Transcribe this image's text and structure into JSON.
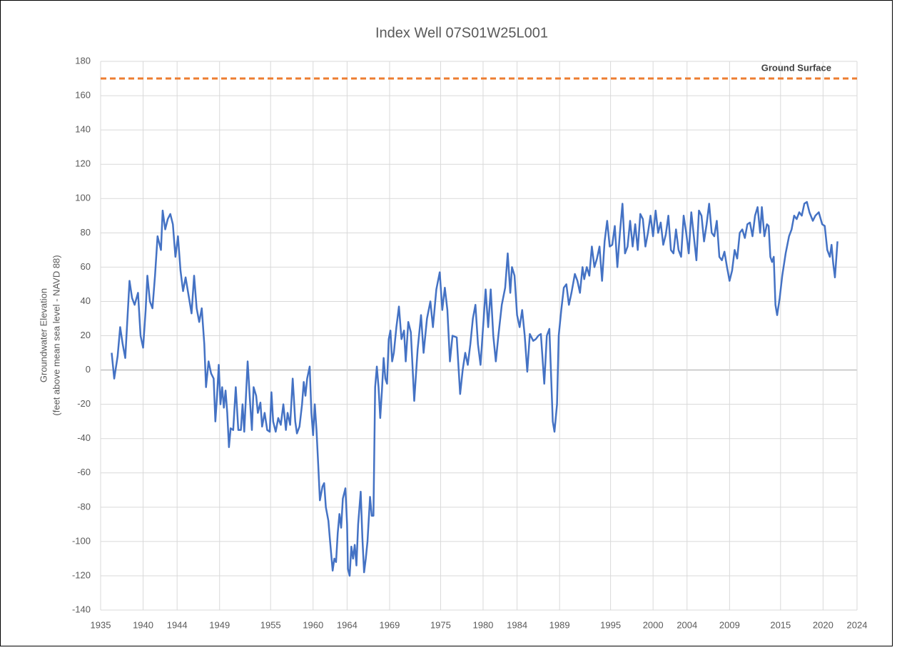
{
  "chart_data": {
    "type": "line",
    "title": "Index Well 07S01W25L001",
    "ylabel": [
      "Groundwater Elevation",
      "(feet above mean sea level - NAVD 88)"
    ],
    "xlim": [
      1935,
      2024
    ],
    "xticks": [
      1935,
      1940,
      1944,
      1949,
      1955,
      1960,
      1964,
      1969,
      1975,
      1980,
      1984,
      1989,
      1995,
      2000,
      2004,
      2009,
      2015,
      2020,
      2024
    ],
    "ylim": [
      -140,
      180
    ],
    "yticks": [
      -140,
      -120,
      -100,
      -80,
      -60,
      -40,
      -20,
      0,
      20,
      40,
      60,
      80,
      100,
      120,
      140,
      160,
      180
    ],
    "grid": true,
    "series": [
      {
        "color": "#4472c4",
        "x": [
          1936.3,
          1936.6,
          1937.0,
          1937.3,
          1937.6,
          1937.9,
          1938.1,
          1938.4,
          1938.7,
          1939.0,
          1939.4,
          1939.7,
          1940.0,
          1940.3,
          1940.5,
          1940.8,
          1941.1,
          1941.4,
          1941.7,
          1942.1,
          1942.3,
          1942.6,
          1942.9,
          1943.2,
          1943.5,
          1943.8,
          1944.1,
          1944.4,
          1944.7,
          1945.0,
          1945.4,
          1945.7,
          1946.0,
          1946.3,
          1946.6,
          1946.9,
          1947.2,
          1947.4,
          1947.7,
          1948.0,
          1948.3,
          1948.5,
          1948.7,
          1948.9,
          1949.1,
          1949.3,
          1949.5,
          1949.7,
          1949.9,
          1950.1,
          1950.3,
          1950.6,
          1950.9,
          1951.2,
          1951.5,
          1951.7,
          1951.9,
          1952.3,
          1952.6,
          1952.8,
          1953.0,
          1953.3,
          1953.5,
          1953.8,
          1954.0,
          1954.3,
          1954.6,
          1954.9,
          1955.1,
          1955.3,
          1955.6,
          1955.9,
          1956.2,
          1956.5,
          1956.8,
          1957.0,
          1957.3,
          1957.6,
          1957.9,
          1958.1,
          1958.4,
          1958.7,
          1958.9,
          1959.1,
          1959.3,
          1959.6,
          1959.8,
          1960.0,
          1960.2,
          1960.4,
          1960.6,
          1960.8,
          1961.1,
          1961.3,
          1961.5,
          1961.8,
          1962.0,
          1962.3,
          1962.5,
          1962.7,
          1962.9,
          1963.1,
          1963.3,
          1963.5,
          1963.8,
          1964.0,
          1964.1,
          1964.3,
          1964.5,
          1964.7,
          1964.9,
          1965.1,
          1965.3,
          1965.6,
          1965.8,
          1966.0,
          1966.2,
          1966.4,
          1966.7,
          1966.9,
          1967.1,
          1967.3,
          1967.5,
          1967.7,
          1967.9,
          1968.1,
          1968.3,
          1968.5,
          1968.7,
          1968.9,
          1969.1,
          1969.3,
          1969.5,
          1969.8,
          1970.1,
          1970.4,
          1970.7,
          1970.9,
          1971.2,
          1971.5,
          1971.9,
          1972.3,
          1972.7,
          1973.0,
          1973.4,
          1973.8,
          1974.1,
          1974.5,
          1974.9,
          1975.2,
          1975.5,
          1975.8,
          1976.1,
          1976.4,
          1976.9,
          1977.3,
          1977.6,
          1977.9,
          1978.2,
          1978.5,
          1978.8,
          1979.1,
          1979.4,
          1979.7,
          1980.0,
          1980.3,
          1980.6,
          1980.9,
          1981.2,
          1981.5,
          1981.8,
          1982.2,
          1982.6,
          1982.9,
          1983.2,
          1983.4,
          1983.7,
          1984.0,
          1984.3,
          1984.6,
          1984.9,
          1985.2,
          1985.5,
          1985.9,
          1986.2,
          1986.5,
          1986.8,
          1987.2,
          1987.5,
          1987.8,
          1988.2,
          1988.4,
          1988.7,
          1988.9,
          1989.2,
          1989.5,
          1989.8,
          1990.1,
          1990.4,
          1990.8,
          1991.1,
          1991.4,
          1991.7,
          1991.9,
          1992.2,
          1992.5,
          1992.8,
          1993.1,
          1993.4,
          1993.7,
          1994.0,
          1994.3,
          1994.6,
          1994.9,
          1995.2,
          1995.5,
          1995.8,
          1996.1,
          1996.4,
          1996.7,
          1997.0,
          1997.3,
          1997.6,
          1997.9,
          1998.2,
          1998.5,
          1998.8,
          1999.1,
          1999.4,
          1999.7,
          2000.0,
          2000.3,
          2000.6,
          2000.9,
          2001.2,
          2001.5,
          2001.8,
          2002.1,
          2002.4,
          2002.7,
          2003.0,
          2003.3,
          2003.6,
          2003.9,
          2004.2,
          2004.5,
          2004.8,
          2005.1,
          2005.4,
          2005.7,
          2006.0,
          2006.3,
          2006.6,
          2006.9,
          2007.2,
          2007.5,
          2007.8,
          2008.1,
          2008.4,
          2008.7,
          2009.0,
          2009.3,
          2009.6,
          2009.9,
          2010.2,
          2010.5,
          2010.8,
          2011.1,
          2011.4,
          2011.7,
          2012.0,
          2012.3,
          2012.6,
          2012.8,
          2013.1,
          2013.4,
          2013.6,
          2013.8,
          2014.0,
          2014.2,
          2014.4,
          2014.6,
          2014.9,
          2015.2,
          2015.6,
          2016.0,
          2016.3,
          2016.6,
          2016.9,
          2017.2,
          2017.5,
          2017.8,
          2018.1,
          2018.4,
          2018.8,
          2019.1,
          2019.5,
          2019.9,
          2020.2,
          2020.5,
          2020.8,
          2021.0,
          2021.2,
          2021.4,
          2021.7
        ],
        "values": [
          10,
          -5,
          8,
          25,
          15,
          7,
          25,
          52,
          42,
          38,
          45,
          20,
          13,
          35,
          55,
          40,
          36,
          55,
          78,
          70,
          93,
          82,
          88,
          91,
          85,
          66,
          78,
          58,
          46,
          54,
          42,
          33,
          55,
          36,
          28,
          36,
          15,
          -10,
          5,
          -2,
          -5,
          -30,
          -15,
          3,
          -20,
          -10,
          -22,
          -12,
          -25,
          -45,
          -34,
          -35,
          -10,
          -35,
          -35,
          -20,
          -36,
          5,
          -20,
          -35,
          -10,
          -15,
          -25,
          -19,
          -33,
          -25,
          -35,
          -36,
          -13,
          -30,
          -36,
          -28,
          -32,
          -20,
          -35,
          -25,
          -32,
          -5,
          -30,
          -37,
          -33,
          -20,
          -7,
          -15,
          -5,
          2,
          -25,
          -38,
          -20,
          -35,
          -55,
          -76,
          -68,
          -66,
          -80,
          -88,
          -100,
          -117,
          -110,
          -112,
          -95,
          -84,
          -92,
          -75,
          -69,
          -90,
          -116,
          -120,
          -103,
          -110,
          -102,
          -114,
          -90,
          -71,
          -98,
          -118,
          -110,
          -100,
          -74,
          -85,
          -85,
          -10,
          2,
          -10,
          -28,
          -12,
          7,
          -5,
          -8,
          18,
          23,
          5,
          10,
          25,
          37,
          18,
          23,
          5,
          28,
          22,
          -18,
          12,
          32,
          10,
          30,
          40,
          25,
          47,
          57,
          35,
          48,
          35,
          5,
          20,
          19,
          -14,
          0,
          10,
          3,
          15,
          30,
          38,
          15,
          3,
          25,
          47,
          25,
          47,
          20,
          5,
          20,
          38,
          48,
          68,
          45,
          60,
          55,
          32,
          25,
          35,
          20,
          -1,
          21,
          17,
          18,
          20,
          21,
          -8,
          20,
          24,
          -30,
          -36,
          -20,
          20,
          35,
          48,
          50,
          38,
          45,
          56,
          52,
          45,
          60,
          53,
          60,
          55,
          72,
          60,
          65,
          72,
          52,
          75,
          87,
          72,
          73,
          84,
          60,
          80,
          97,
          68,
          72,
          87,
          72,
          85,
          70,
          91,
          88,
          72,
          80,
          90,
          78,
          93,
          80,
          86,
          73,
          79,
          90,
          70,
          68,
          82,
          70,
          66,
          90,
          80,
          68,
          92,
          78,
          64,
          93,
          90,
          75,
          85,
          97,
          80,
          78,
          87,
          66,
          64,
          69,
          60,
          52,
          58,
          70,
          65,
          80,
          82,
          77,
          85,
          86,
          78,
          90,
          95,
          80,
          95,
          78,
          85,
          84,
          66,
          63,
          66,
          38,
          32,
          42,
          55,
          68,
          78,
          82,
          90,
          88,
          92,
          90,
          97,
          98,
          92,
          87,
          90,
          92,
          85,
          84,
          70,
          66,
          73,
          62,
          54,
          75
        ]
      },
      {
        "name": "Ground Surface",
        "color": "#ed7d31",
        "dashed": true,
        "x": [
          1935,
          2024
        ],
        "values": [
          170,
          170
        ]
      }
    ]
  }
}
